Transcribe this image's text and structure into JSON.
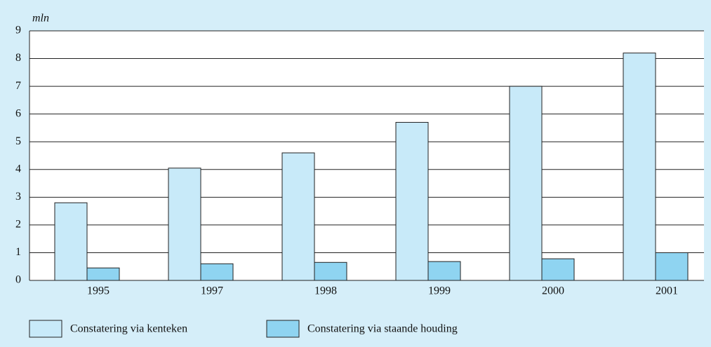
{
  "chart_data": {
    "type": "bar",
    "y_label": "mln",
    "categories": [
      "1995",
      "1997",
      "1998",
      "1999",
      "2000",
      "2001"
    ],
    "series": [
      {
        "name": "Constatering via kenteken",
        "color": "#c8eaf9",
        "values": [
          2.8,
          4.05,
          4.6,
          5.7,
          7.0,
          8.2
        ]
      },
      {
        "name": "Constatering via staande houding",
        "color": "#8fd4f1",
        "values": [
          0.45,
          0.6,
          0.65,
          0.68,
          0.78,
          1.0
        ]
      }
    ],
    "ylim": [
      0,
      9
    ],
    "yticks": [
      0,
      1,
      2,
      3,
      4,
      5,
      6,
      7,
      8,
      9
    ],
    "grid": true
  }
}
